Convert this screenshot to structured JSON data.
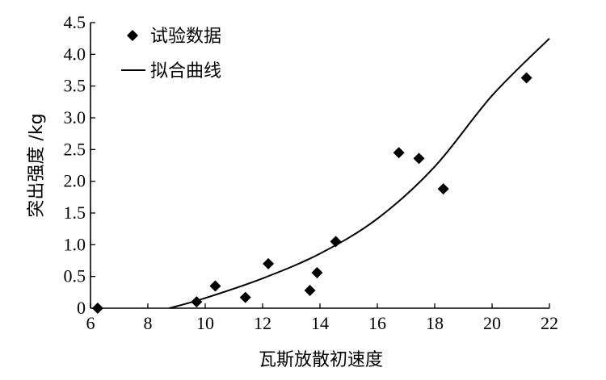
{
  "chart_data": {
    "type": "scatter",
    "xlabel": "瓦斯放散初速度",
    "ylabel": "突出强度 /kg",
    "xlim": [
      6,
      22
    ],
    "ylim": [
      0,
      4.5
    ],
    "x_ticks": [
      6,
      8,
      10,
      12,
      14,
      16,
      18,
      20,
      22
    ],
    "y_ticks": [
      0,
      0.5,
      1.0,
      1.5,
      2.0,
      2.5,
      3.0,
      3.5,
      4.0,
      4.5
    ],
    "x_tick_labels": [
      "6",
      "8",
      "10",
      "12",
      "14",
      "16",
      "18",
      "20",
      "22"
    ],
    "y_tick_labels": [
      "0",
      "0.5",
      "1.0",
      "1.5",
      "2.0",
      "2.5",
      "3.0",
      "3.5",
      "4.0",
      "4.5"
    ],
    "grid": false,
    "legend_position": "top-left",
    "series": [
      {
        "name": "试验数据",
        "kind": "scatter",
        "marker": "diamond",
        "color": "#000000",
        "points": [
          {
            "x": 6.25,
            "y": 0.0
          },
          {
            "x": 9.7,
            "y": 0.1
          },
          {
            "x": 10.35,
            "y": 0.35
          },
          {
            "x": 11.4,
            "y": 0.17
          },
          {
            "x": 12.2,
            "y": 0.7
          },
          {
            "x": 13.65,
            "y": 0.28
          },
          {
            "x": 13.9,
            "y": 0.56
          },
          {
            "x": 14.55,
            "y": 1.05
          },
          {
            "x": 16.75,
            "y": 2.45
          },
          {
            "x": 17.45,
            "y": 2.36
          },
          {
            "x": 18.3,
            "y": 1.88
          },
          {
            "x": 21.2,
            "y": 3.63
          }
        ]
      },
      {
        "name": "拟合曲线",
        "kind": "line",
        "color": "#000000",
        "points": [
          {
            "x": 8.75,
            "y": 0.0
          },
          {
            "x": 10.0,
            "y": 0.16
          },
          {
            "x": 12.0,
            "y": 0.47
          },
          {
            "x": 14.0,
            "y": 0.86
          },
          {
            "x": 16.0,
            "y": 1.41
          },
          {
            "x": 18.0,
            "y": 2.23
          },
          {
            "x": 20.0,
            "y": 3.35
          },
          {
            "x": 22.0,
            "y": 4.25
          }
        ]
      }
    ]
  }
}
